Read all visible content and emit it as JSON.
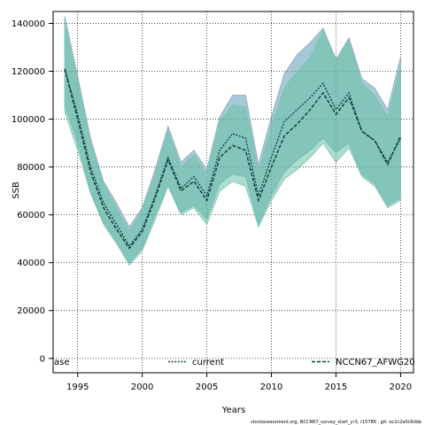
{
  "chart_data": {
    "type": "area",
    "xlabel": "Years",
    "ylabel": "SSB",
    "xlim": [
      1993.1,
      2021.0
    ],
    "ylim": [
      -6000,
      145000
    ],
    "x_ticks": [
      1995,
      2000,
      2005,
      2010,
      2015,
      2020
    ],
    "y_ticks": [
      0,
      20000,
      40000,
      60000,
      80000,
      100000,
      120000,
      140000
    ],
    "grid": true,
    "legend_position": "bottom",
    "legend_entries": [
      "ase",
      "current",
      "NCCN67_AFWG20"
    ],
    "years": [
      1994,
      1995,
      1996,
      1997,
      1998,
      1999,
      2000,
      2001,
      2002,
      2003,
      2004,
      2005,
      2006,
      2007,
      2008,
      2009,
      2010,
      2011,
      2012,
      2013,
      2014,
      2015,
      2016,
      2017,
      2018,
      2019,
      2020
    ],
    "series": [
      {
        "name": "current",
        "color": "#5f9ab5",
        "line_style": "dotted",
        "values": [
          121000,
          102000,
          80000,
          65000,
          56000,
          47000,
          54000,
          68000,
          84000,
          71000,
          76000,
          68000,
          87000,
          94000,
          92000,
          68000,
          84000,
          99000,
          104000,
          109000,
          115000,
          104000,
          111000,
          95000,
          91000,
          82000,
          92000
        ],
        "lower": [
          106000,
          90000,
          70000,
          57000,
          49000,
          40000,
          46000,
          60000,
          72000,
          61000,
          64000,
          58000,
          73000,
          77000,
          76000,
          56000,
          68000,
          78000,
          83000,
          87000,
          92000,
          86000,
          90000,
          77000,
          73000,
          64000,
          67000
        ],
        "upper": [
          143000,
          118000,
          92000,
          74000,
          65000,
          55000,
          63000,
          79000,
          97000,
          82000,
          87000,
          79000,
          101000,
          110000,
          110000,
          81000,
          101000,
          119000,
          127000,
          132000,
          138000,
          125000,
          134000,
          117000,
          113000,
          104000,
          126000
        ]
      },
      {
        "name": "NCCN67_AFWG20",
        "color": "#66c2a5",
        "line_style": "dashed",
        "values": [
          121000,
          100000,
          78000,
          63000,
          54000,
          46000,
          53000,
          67000,
          83000,
          70000,
          74000,
          66000,
          84000,
          89000,
          87000,
          66000,
          80000,
          93000,
          98000,
          104000,
          111000,
          102000,
          109000,
          95000,
          91000,
          81000,
          93000
        ],
        "lower": [
          103000,
          87000,
          69000,
          56000,
          48000,
          39000,
          45000,
          58000,
          72000,
          60000,
          63000,
          56000,
          70000,
          74000,
          72000,
          55000,
          66000,
          75000,
          79000,
          84000,
          90000,
          82000,
          88000,
          76000,
          72000,
          63000,
          66000
        ],
        "upper": [
          140000,
          116000,
          90000,
          73000,
          63000,
          53000,
          62000,
          77000,
          95000,
          80000,
          85000,
          77000,
          99000,
          106000,
          105000,
          78000,
          97000,
          113000,
          120000,
          126000,
          137000,
          124000,
          133000,
          115000,
          110000,
          101000,
          122000
        ]
      }
    ]
  },
  "footnote": "stockassessment.org, NCCN67_survey_start_yr3, r15786 , git: ec2c2a0c6dde"
}
